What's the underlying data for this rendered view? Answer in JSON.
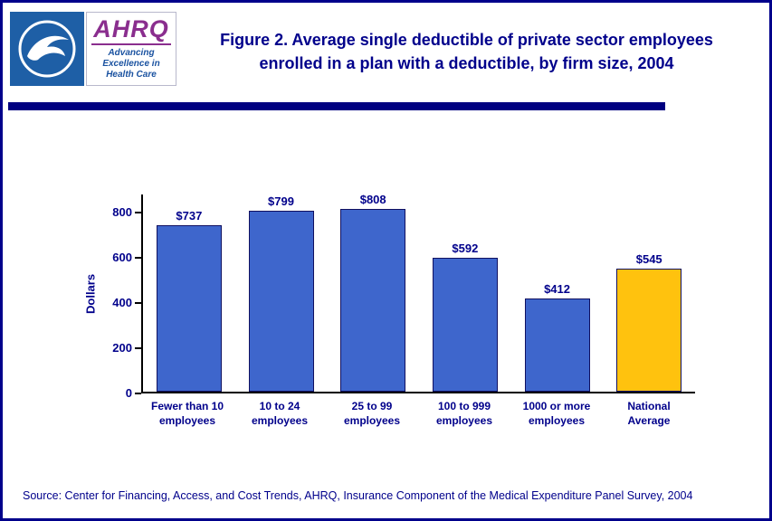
{
  "header": {
    "title_line1": "Figure 2. Average single deductible of private sector employees",
    "title_line2": "enrolled in a plan with a deductible, by firm size, 2004",
    "ahrq_logo": {
      "acronym": "AHRQ",
      "tagline": "Advancing\nExcellence in\nHealth Care"
    }
  },
  "chart_data": {
    "type": "bar",
    "categories": [
      "Fewer than 10\nemployees",
      "10 to 24\nemployees",
      "25 to 99\nemployees",
      "100 to 999\nemployees",
      "1000 or more\nemployees",
      "National\nAverage"
    ],
    "values": [
      737,
      799,
      808,
      592,
      412,
      545
    ],
    "value_labels": [
      "$737",
      "$799",
      "$808",
      "$592",
      "$412",
      "$545"
    ],
    "bar_colors": [
      "#3E66CC",
      "#3E66CC",
      "#3E66CC",
      "#3E66CC",
      "#3E66CC",
      "#FFC20E"
    ],
    "title": "Average single deductible of private sector employees enrolled in a plan with a deductible, by firm size, 2004",
    "xlabel": "",
    "ylabel": "Dollars",
    "yticks": [
      0,
      200,
      400,
      600,
      800
    ],
    "ylim": [
      0,
      880
    ],
    "grid": false,
    "legend": "none",
    "accent_colors": {
      "bar_blue": "#3E66CC",
      "bar_gold": "#FFC20E",
      "navy_text": "#00008B",
      "divider": "#000080"
    }
  },
  "footer": {
    "source": "Source: Center for Financing, Access, and Cost Trends, AHRQ, Insurance Component of the Medical Expenditure Panel Survey, 2004"
  }
}
